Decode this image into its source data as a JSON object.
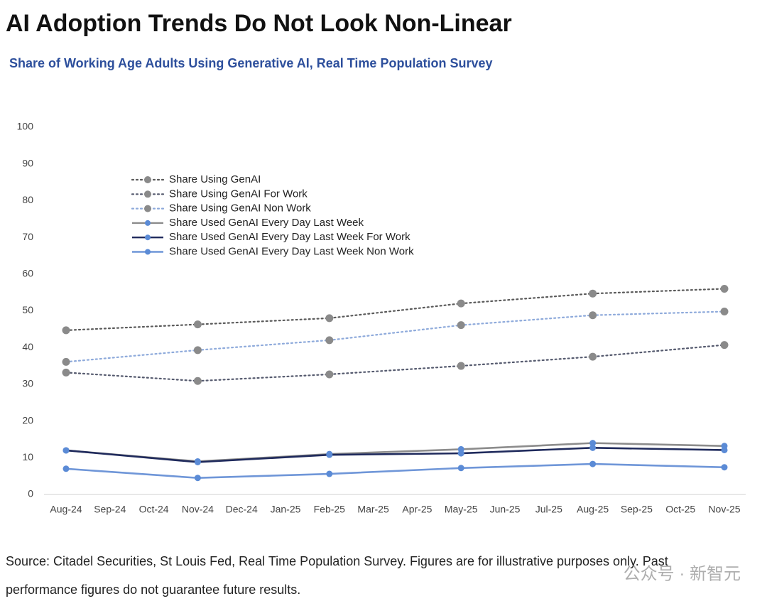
{
  "chart_data": {
    "type": "line",
    "title": "AI Adoption Trends Do Not Look Non-Linear",
    "subtitle": "Share of Working Age Adults Using Generative AI, Real Time Population Survey",
    "categories": [
      "Aug-24",
      "Sep-24",
      "Oct-24",
      "Nov-24",
      "Dec-24",
      "Jan-25",
      "Feb-25",
      "Mar-25",
      "Apr-25",
      "May-25",
      "Jun-25",
      "Jul-25",
      "Aug-25",
      "Sep-25",
      "Oct-25",
      "Nov-25"
    ],
    "x": [
      "Aug-24",
      "Nov-24",
      "Feb-25",
      "May-25",
      "Aug-25",
      "Nov-25"
    ],
    "series": [
      {
        "name": "Share Using GenAI",
        "color": "#5a5a5a",
        "marker_color": "#8a8a8a",
        "dotted": true,
        "values": [
          44.7,
          46.3,
          48,
          52,
          54.7,
          56
        ]
      },
      {
        "name": "Share Using GenAI For Work",
        "color": "#555a6e",
        "marker_color": "#8a8a8a",
        "dotted": true,
        "values": [
          33.2,
          30.9,
          32.7,
          35,
          37.5,
          40.7
        ]
      },
      {
        "name": "Share Using GenAI Non Work",
        "color": "#8eaadb",
        "marker_color": "#8a8a8a",
        "dotted": true,
        "values": [
          36.1,
          39.3,
          42,
          46.1,
          48.8,
          49.8
        ]
      },
      {
        "name": "Share Used GenAI Every Day Last Week",
        "color": "#8c8c8c",
        "marker_color": "#5b8bd6",
        "dotted": false,
        "values": [
          12,
          9,
          11,
          12.3,
          14,
          13.2
        ]
      },
      {
        "name": "Share Used GenAI Every Day Last Week For Work",
        "color": "#1f2a5c",
        "marker_color": "#5b8bd6",
        "dotted": false,
        "values": [
          12,
          8.8,
          10.8,
          11.2,
          12.7,
          12.1
        ]
      },
      {
        "name": "Share Used GenAI Every Day Last Week Non Work",
        "color": "#6f96d8",
        "marker_color": "#5b8bd6",
        "dotted": false,
        "values": [
          7,
          4.5,
          5.6,
          7.2,
          8.3,
          7.4
        ]
      }
    ],
    "ylim": [
      0,
      100
    ],
    "yticks": [
      0,
      10,
      20,
      30,
      40,
      50,
      60,
      70,
      80,
      90,
      100
    ],
    "grid": false,
    "source": [
      "Source: Citadel Securities, St Louis Fed, Real Time Population Survey. Figures are for illustrative purposes only. Past",
      "performance figures do not guarantee future results."
    ],
    "watermark": "公众号 · 新智元"
  }
}
